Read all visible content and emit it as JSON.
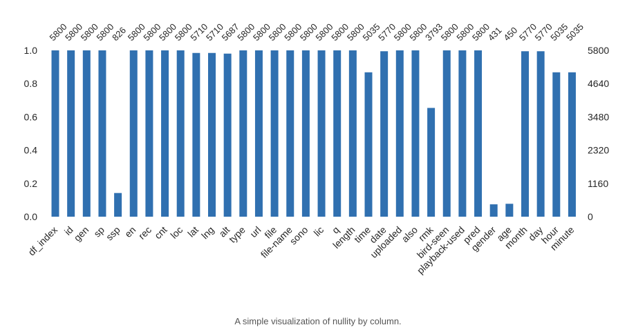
{
  "caption": "A simple visualization of nullity by column.",
  "chart_data": {
    "type": "bar",
    "categories": [
      "df_index",
      "id",
      "gen",
      "sp",
      "ssp",
      "en",
      "rec",
      "cnt",
      "loc",
      "lat",
      "lng",
      "alt",
      "type",
      "url",
      "file",
      "file-name",
      "sono",
      "lic",
      "q",
      "length",
      "time",
      "date",
      "uploaded",
      "also",
      "rmk",
      "bird-seen",
      "playback-used",
      "pred",
      "gender",
      "age",
      "month",
      "day",
      "hour",
      "minute"
    ],
    "values": [
      5800,
      5800,
      5800,
      5800,
      826,
      5800,
      5800,
      5800,
      5800,
      5710,
      5710,
      5687,
      5800,
      5800,
      5800,
      5800,
      5800,
      5800,
      5800,
      5800,
      5035,
      5770,
      5800,
      5800,
      3793,
      5800,
      5800,
      5800,
      431,
      450,
      5770,
      5770,
      5035,
      5035
    ],
    "total": 5800,
    "ylim": [
      0,
      1
    ],
    "left_ticks": [
      "0.0",
      "0.2",
      "0.4",
      "0.6",
      "0.8",
      "1.0"
    ],
    "right_ticks": [
      "0",
      "1160",
      "2320",
      "3480",
      "4640",
      "5800"
    ],
    "grid": false,
    "bar_color": "#3070b0"
  }
}
